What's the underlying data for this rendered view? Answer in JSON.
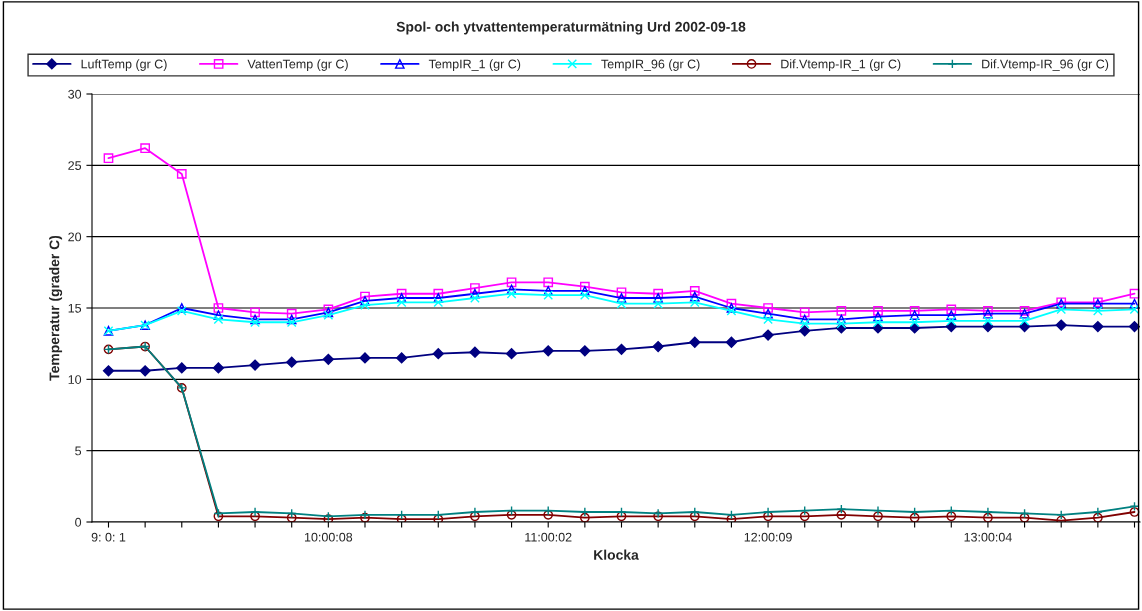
{
  "chart_data": {
    "type": "line",
    "title": "Spol- och ytvattentemperaturmätning Urd 2002-09-18",
    "xlabel": "Klocka",
    "ylabel": "Temperatur (grader C)",
    "categories": [
      "9: 0: 1",
      null,
      null,
      null,
      null,
      null,
      "10:00:08",
      null,
      null,
      null,
      null,
      null,
      "11:00:02",
      null,
      null,
      null,
      null,
      null,
      "12:00:09",
      null,
      null,
      null,
      null,
      null,
      "13:00:04",
      null,
      null,
      null,
      null
    ],
    "series": [
      {
        "name": "LuftTemp (gr C)",
        "color": "#000080",
        "marker": "diamond",
        "values": [
          10.6,
          10.6,
          10.8,
          10.8,
          11.0,
          11.2,
          11.4,
          11.5,
          11.5,
          11.8,
          11.9,
          11.8,
          12.0,
          12.0,
          12.1,
          12.3,
          12.6,
          12.6,
          13.1,
          13.4,
          13.6,
          13.6,
          13.6,
          13.7,
          13.7,
          13.7,
          13.8,
          13.7,
          13.7
        ]
      },
      {
        "name": "VattenTemp (gr C)",
        "color": "#ff00ff",
        "marker": "square",
        "values": [
          25.5,
          26.2,
          24.4,
          15.0,
          14.7,
          14.6,
          14.9,
          15.8,
          16.0,
          16.0,
          16.4,
          16.8,
          16.8,
          16.5,
          16.1,
          16.0,
          16.2,
          15.3,
          15.0,
          14.7,
          14.8,
          14.8,
          14.8,
          14.9,
          14.8,
          14.8,
          15.4,
          15.4,
          16.0
        ]
      },
      {
        "name": "TempIR_1 (gr C)",
        "color": "#0000ff",
        "marker": "triangle",
        "values": [
          13.4,
          13.8,
          15.0,
          14.5,
          14.2,
          14.2,
          14.7,
          15.5,
          15.7,
          15.7,
          16.0,
          16.3,
          16.2,
          16.2,
          15.7,
          15.7,
          15.8,
          15.0,
          14.6,
          14.2,
          14.2,
          14.4,
          14.5,
          14.5,
          14.6,
          14.6,
          15.3,
          15.3,
          15.3
        ]
      },
      {
        "name": "TempIR_96 (gr C)",
        "color": "#00ffff",
        "marker": "cross",
        "values": [
          13.4,
          13.8,
          14.8,
          14.2,
          14.0,
          14.0,
          14.5,
          15.2,
          15.4,
          15.4,
          15.7,
          16.0,
          15.9,
          15.9,
          15.3,
          15.3,
          15.4,
          14.8,
          14.2,
          13.9,
          13.9,
          14.0,
          14.0,
          14.1,
          14.1,
          14.1,
          14.9,
          14.8,
          14.9
        ]
      },
      {
        "name": "Dif.Vtemp-IR_1 (gr C)",
        "color": "#800000",
        "marker": "circle",
        "values": [
          12.1,
          12.3,
          9.4,
          0.4,
          0.4,
          0.3,
          0.2,
          0.3,
          0.2,
          0.2,
          0.4,
          0.5,
          0.5,
          0.3,
          0.4,
          0.4,
          0.4,
          0.2,
          0.4,
          0.4,
          0.5,
          0.4,
          0.3,
          0.4,
          0.3,
          0.3,
          0.1,
          0.3,
          0.7
        ]
      },
      {
        "name": "Dif.Vtemp-IR_96 (gr C)",
        "color": "#008080",
        "marker": "plus",
        "values": [
          12.1,
          12.3,
          9.4,
          0.6,
          0.7,
          0.6,
          0.4,
          0.5,
          0.5,
          0.5,
          0.7,
          0.8,
          0.8,
          0.7,
          0.7,
          0.6,
          0.7,
          0.5,
          0.7,
          0.8,
          0.9,
          0.8,
          0.7,
          0.8,
          0.7,
          0.6,
          0.5,
          0.7,
          1.1
        ]
      }
    ],
    "ylim": [
      0,
      30
    ],
    "yticks": [
      0,
      5,
      10,
      15,
      20,
      25,
      30
    ],
    "grid": "y",
    "legend": "top"
  }
}
